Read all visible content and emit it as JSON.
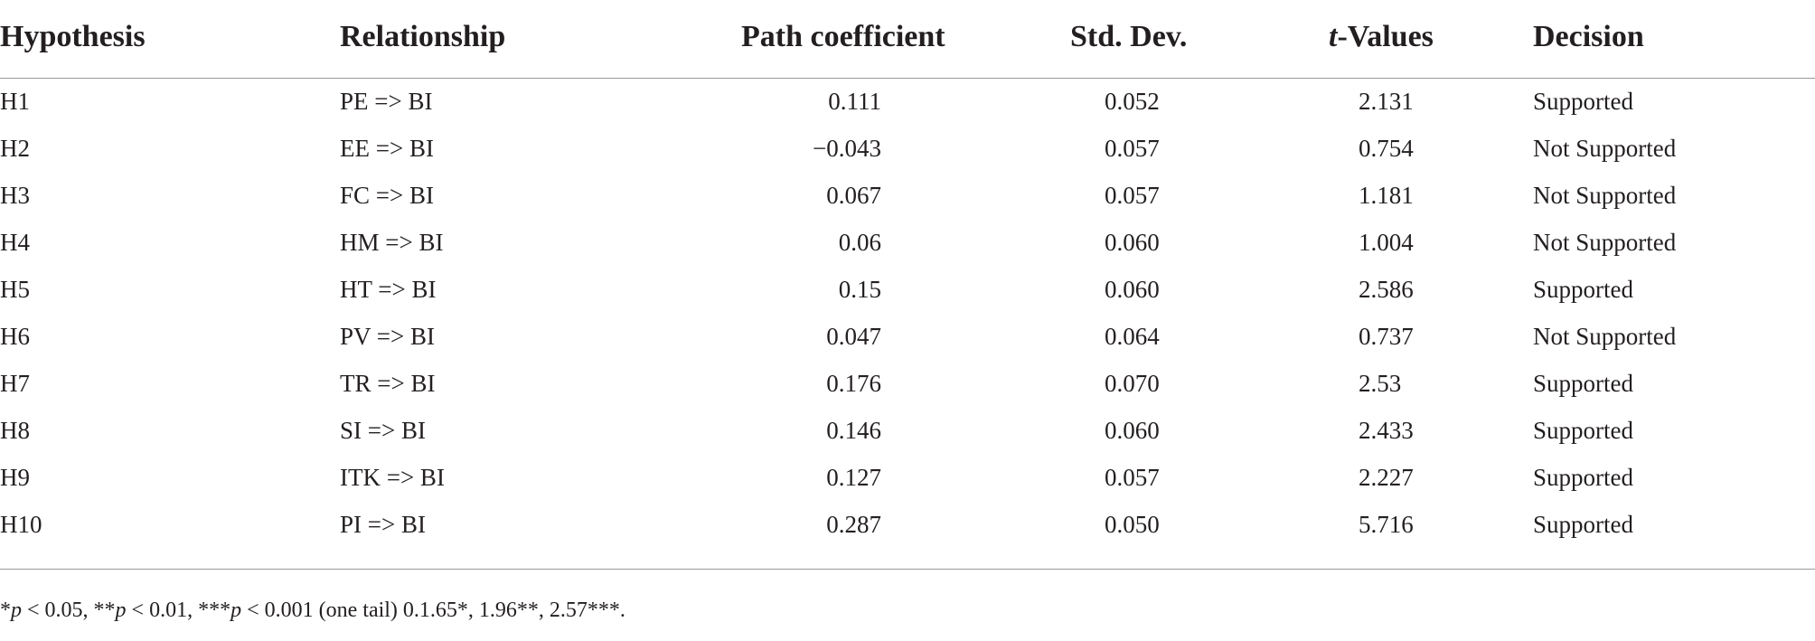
{
  "table": {
    "headers": {
      "hypothesis": "Hypothesis",
      "relationship": "Relationship",
      "path_coefficient": "Path coefficient",
      "std_dev": "Std. Dev.",
      "t_values_italic": "t",
      "t_values_rest": "-Values",
      "decision": "Decision"
    },
    "rows": [
      {
        "hypothesis": "H1",
        "relationship": "PE => BI",
        "path": "0.111",
        "std": "0.052",
        "t": "2.131",
        "decision": "Supported"
      },
      {
        "hypothesis": "H2",
        "relationship": "EE => BI",
        "path": "−0.043",
        "std": "0.057",
        "t": "0.754",
        "decision": "Not Supported"
      },
      {
        "hypothesis": "H3",
        "relationship": "FC => BI",
        "path": "0.067",
        "std": "0.057",
        "t": "1.181",
        "decision": "Not Supported"
      },
      {
        "hypothesis": "H4",
        "relationship": "HM => BI",
        "path": "0.06",
        "std": "0.060",
        "t": "1.004",
        "decision": "Not Supported"
      },
      {
        "hypothesis": "H5",
        "relationship": "HT => BI",
        "path": "0.15",
        "std": "0.060",
        "t": "2.586",
        "decision": "Supported"
      },
      {
        "hypothesis": "H6",
        "relationship": "PV => BI",
        "path": "0.047",
        "std": "0.064",
        "t": "0.737",
        "decision": "Not Supported"
      },
      {
        "hypothesis": "H7",
        "relationship": "TR => BI",
        "path": "0.176",
        "std": "0.070",
        "t": "2.53",
        "decision": "Supported"
      },
      {
        "hypothesis": "H8",
        "relationship": "SI => BI",
        "path": "0.146",
        "std": "0.060",
        "t": "2.433",
        "decision": "Supported"
      },
      {
        "hypothesis": "H9",
        "relationship": "ITK => BI",
        "path": "0.127",
        "std": "0.057",
        "t": "2.227",
        "decision": "Supported"
      },
      {
        "hypothesis": "H10",
        "relationship": "PI => BI",
        "path": "0.287",
        "std": "0.050",
        "t": "5.716",
        "decision": "Supported"
      }
    ]
  },
  "footnote": {
    "p1_prefix": "*",
    "p1_var": "p",
    "p1_rest": " < 0.05, **",
    "p2_var": "p",
    "p2_rest": " < 0.01, ***",
    "p3_var": "p",
    "p3_rest": " < 0.001 (one tail) 0.1.65*, 1.96**, 2.57***."
  }
}
